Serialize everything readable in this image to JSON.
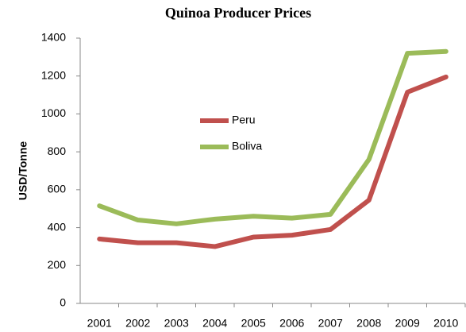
{
  "chart_data": {
    "type": "line",
    "title": "Quinoa Producer Prices",
    "y_label": "USD/Tonne",
    "categories": [
      "2001",
      "2002",
      "2003",
      "2004",
      "2005",
      "2006",
      "2007",
      "2008",
      "2009",
      "2010"
    ],
    "series": [
      {
        "name": "Peru",
        "color": "#c0504d",
        "values": [
          340,
          320,
          320,
          300,
          350,
          360,
          390,
          545,
          1115,
          1195
        ]
      },
      {
        "name": "Boliva",
        "color": "#9bbb59",
        "values": [
          515,
          440,
          420,
          445,
          460,
          450,
          470,
          760,
          1320,
          1330
        ]
      }
    ],
    "ylim": [
      0,
      1400
    ],
    "yticks": [
      0,
      200,
      400,
      600,
      800,
      1000,
      1200,
      1400
    ],
    "grid": false
  }
}
